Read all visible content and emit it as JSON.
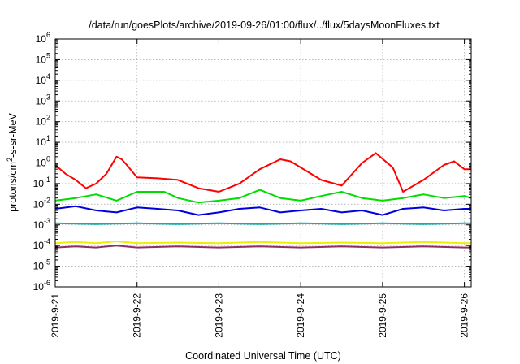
{
  "chart_data": {
    "type": "line",
    "title": "/data/run/goesPlots/archive/2019-09-26/01:00/flux/../flux/5daysMoonFluxes.txt",
    "xlabel": "Coordinated Universal Time (UTC)",
    "ylabel_parts": {
      "base": "protons/cm",
      "sup": "2",
      "rest": "-s-sr-MeV"
    },
    "y_scale": "log",
    "ylim_exp": [
      -6,
      6
    ],
    "y_tick_exps": [
      -6,
      -5,
      -4,
      -3,
      -2,
      -1,
      0,
      1,
      2,
      3,
      4,
      5,
      6
    ],
    "xlim": [
      "2019-09-21",
      "2019-09-26 02:00"
    ],
    "x_ticks": [
      {
        "date": "2019-09-21",
        "label": "2019-9-21"
      },
      {
        "date": "2019-09-22",
        "label": "2019-9-22"
      },
      {
        "date": "2019-09-23",
        "label": "2019-9-23"
      },
      {
        "date": "2019-09-24",
        "label": "2019-9-24"
      },
      {
        "date": "2019-09-25",
        "label": "2019-9-25"
      },
      {
        "date": "2019-09-26",
        "label": "2019-9-26"
      }
    ],
    "grid": true,
    "series": [
      {
        "color": "#ff0000",
        "x": [
          "2019-09-21 00:00",
          "2019-09-21 03:00",
          "2019-09-21 06:00",
          "2019-09-21 09:00",
          "2019-09-21 12:00",
          "2019-09-21 15:00",
          "2019-09-21 18:00",
          "2019-09-21 19:30",
          "2019-09-21 21:00",
          "2019-09-22 00:00",
          "2019-09-22 06:00",
          "2019-09-22 12:00",
          "2019-09-22 18:00",
          "2019-09-23 00:00",
          "2019-09-23 06:00",
          "2019-09-23 12:00",
          "2019-09-23 18:00",
          "2019-09-23 21:00",
          "2019-09-24 00:00",
          "2019-09-24 06:00",
          "2019-09-24 12:00",
          "2019-09-24 18:00",
          "2019-09-24 22:00",
          "2019-09-25 03:00",
          "2019-09-25 06:00",
          "2019-09-25 12:00",
          "2019-09-25 18:00",
          "2019-09-25 21:00",
          "2019-09-26 00:00",
          "2019-09-26 02:00"
        ],
        "y": [
          0.8,
          0.3,
          0.15,
          0.06,
          0.1,
          0.3,
          2.0,
          1.5,
          0.8,
          0.2,
          0.18,
          0.15,
          0.06,
          0.04,
          0.1,
          0.5,
          1.5,
          1.2,
          0.6,
          0.15,
          0.08,
          1.0,
          3.0,
          0.6,
          0.04,
          0.15,
          0.8,
          1.2,
          0.5,
          0.5
        ]
      },
      {
        "color": "#00dd00",
        "x": [
          "2019-09-21 00:00",
          "2019-09-21 06:00",
          "2019-09-21 12:00",
          "2019-09-21 18:00",
          "2019-09-22 00:00",
          "2019-09-22 08:00",
          "2019-09-22 12:00",
          "2019-09-22 18:00",
          "2019-09-23 00:00",
          "2019-09-23 06:00",
          "2019-09-23 12:00",
          "2019-09-23 18:00",
          "2019-09-24 00:00",
          "2019-09-24 06:00",
          "2019-09-24 12:00",
          "2019-09-24 18:00",
          "2019-09-25 00:00",
          "2019-09-25 06:00",
          "2019-09-25 12:00",
          "2019-09-25 18:00",
          "2019-09-26 00:00",
          "2019-09-26 02:00"
        ],
        "y": [
          0.015,
          0.02,
          0.03,
          0.015,
          0.04,
          0.04,
          0.02,
          0.012,
          0.015,
          0.02,
          0.05,
          0.02,
          0.015,
          0.025,
          0.04,
          0.02,
          0.015,
          0.02,
          0.03,
          0.02,
          0.025,
          0.02
        ]
      },
      {
        "color": "#0000dd",
        "x": [
          "2019-09-21 00:00",
          "2019-09-21 06:00",
          "2019-09-21 12:00",
          "2019-09-21 18:00",
          "2019-09-22 00:00",
          "2019-09-22 06:00",
          "2019-09-22 12:00",
          "2019-09-22 18:00",
          "2019-09-23 00:00",
          "2019-09-23 06:00",
          "2019-09-23 12:00",
          "2019-09-23 18:00",
          "2019-09-24 00:00",
          "2019-09-24 06:00",
          "2019-09-24 12:00",
          "2019-09-24 18:00",
          "2019-09-25 00:00",
          "2019-09-25 06:00",
          "2019-09-25 12:00",
          "2019-09-25 18:00",
          "2019-09-26 00:00",
          "2019-09-26 02:00"
        ],
        "y": [
          0.006,
          0.008,
          0.005,
          0.004,
          0.007,
          0.006,
          0.005,
          0.003,
          0.004,
          0.006,
          0.007,
          0.004,
          0.005,
          0.006,
          0.004,
          0.005,
          0.003,
          0.006,
          0.007,
          0.005,
          0.006,
          0.006
        ]
      },
      {
        "color": "#00b3b3",
        "x": [
          "2019-09-21 00:00",
          "2019-09-21 12:00",
          "2019-09-22 00:00",
          "2019-09-22 12:00",
          "2019-09-23 00:00",
          "2019-09-23 12:00",
          "2019-09-24 00:00",
          "2019-09-24 12:00",
          "2019-09-25 00:00",
          "2019-09-25 12:00",
          "2019-09-26 00:00",
          "2019-09-26 02:00"
        ],
        "y": [
          0.0012,
          0.0011,
          0.0012,
          0.0011,
          0.0012,
          0.0011,
          0.0012,
          0.0011,
          0.0012,
          0.0011,
          0.0012,
          0.0012
        ]
      },
      {
        "color": "#eeee00",
        "x": [
          "2019-09-21 00:00",
          "2019-09-21 06:00",
          "2019-09-21 12:00",
          "2019-09-21 18:00",
          "2019-09-22 00:00",
          "2019-09-22 12:00",
          "2019-09-23 00:00",
          "2019-09-23 12:00",
          "2019-09-24 00:00",
          "2019-09-24 12:00",
          "2019-09-25 00:00",
          "2019-09-25 12:00",
          "2019-09-26 00:00",
          "2019-09-26 02:00"
        ],
        "y": [
          0.00013,
          0.00015,
          0.00013,
          0.00016,
          0.00013,
          0.00014,
          0.00013,
          0.00015,
          0.00013,
          0.00014,
          0.00013,
          0.00015,
          0.00013,
          0.00013
        ]
      },
      {
        "color": "#8b2f6b",
        "x": [
          "2019-09-21 00:00",
          "2019-09-21 06:00",
          "2019-09-21 12:00",
          "2019-09-21 18:00",
          "2019-09-22 00:00",
          "2019-09-22 12:00",
          "2019-09-23 00:00",
          "2019-09-23 12:00",
          "2019-09-24 00:00",
          "2019-09-24 12:00",
          "2019-09-25 00:00",
          "2019-09-25 12:00",
          "2019-09-26 00:00",
          "2019-09-26 02:00"
        ],
        "y": [
          8e-05,
          9e-05,
          8e-05,
          0.0001,
          8e-05,
          9e-05,
          8e-05,
          9e-05,
          8e-05,
          9e-05,
          8e-05,
          9e-05,
          8e-05,
          8e-05
        ]
      }
    ]
  }
}
